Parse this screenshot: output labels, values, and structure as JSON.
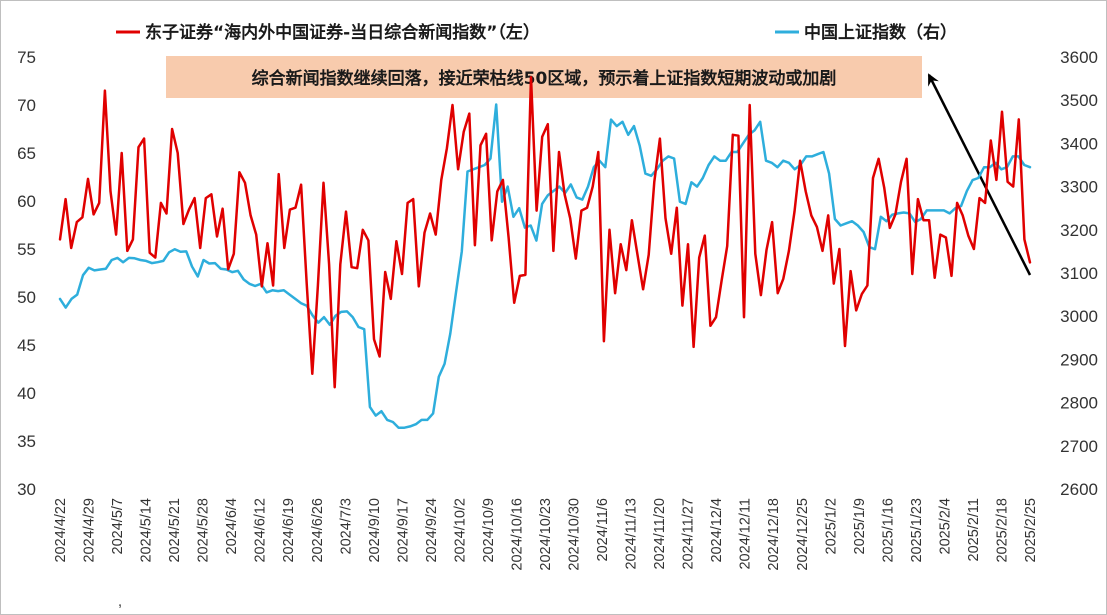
{
  "chart_data": {
    "type": "line",
    "x_tick_labels": [
      "2024/4/22",
      "2024/4/29",
      "2024/5/7",
      "2024/5/14",
      "2024/5/21",
      "2024/5/28",
      "2024/6/4",
      "2024/6/12",
      "2024/6/19",
      "2024/6/26",
      "2024/7/3",
      "2024/9/10",
      "2024/9/17",
      "2024/9/24",
      "2024/10/2",
      "2024/10/9",
      "2024/10/16",
      "2024/10/23",
      "2024/10/30",
      "2024/11/6",
      "2024/11/13",
      "2024/11/20",
      "2024/11/27",
      "2024/12/4",
      "2024/12/11",
      "2024/12/18",
      "2024/12/25",
      "2025/1/2",
      "2025/1/9",
      "2025/1/16",
      "2025/1/23",
      "2025/2/4",
      "2025/2/11",
      "2025/2/18",
      "2025/2/25"
    ],
    "stray_mark": ",",
    "y_left": {
      "min": 30,
      "max": 75,
      "ticks": [
        "30",
        "35",
        "40",
        "45",
        "50",
        "55",
        "60",
        "65",
        "70",
        "75"
      ]
    },
    "y_right": {
      "min": 2600,
      "max": 3600,
      "ticks": [
        "2600",
        "2700",
        "2800",
        "2900",
        "3000",
        "3100",
        "3200",
        "3300",
        "3400",
        "3500",
        "3600"
      ]
    },
    "series": [
      {
        "name": "东子证券“海内外中国证券-当日综合新闻指数”（左）",
        "axis": "left",
        "color": "#e00000",
        "values": [
          56.0,
          60.2,
          55.1,
          57.8,
          58.3,
          62.3,
          58.6,
          59.8,
          71.5,
          61.0,
          56.5,
          65.0,
          54.8,
          56.0,
          65.6,
          66.5,
          54.6,
          54.1,
          59.8,
          58.7,
          67.5,
          65.0,
          57.6,
          59.1,
          60.3,
          55.1,
          60.3,
          60.7,
          56.3,
          59.2,
          52.9,
          54.5,
          63.0,
          61.9,
          58.5,
          56.5,
          51.1,
          55.6,
          51.2,
          62.8,
          55.1,
          59.1,
          59.3,
          61.7,
          51.4,
          42.0,
          51.2,
          61.9,
          53.4,
          40.6,
          53.4,
          58.9,
          53.1,
          53.0,
          57.0,
          55.9,
          45.6,
          43.8,
          52.6,
          49.8,
          55.8,
          52.4,
          59.8,
          60.2,
          51.1,
          56.7,
          58.7,
          56.5,
          62.2,
          65.5,
          70.0,
          63.3,
          67.2,
          69.1,
          55.4,
          65.8,
          67.0,
          55.9,
          61.0,
          62.2,
          56.2,
          49.4,
          52.2,
          52.3,
          72.9,
          59.0,
          66.7,
          68.0,
          54.8,
          65.1,
          60.7,
          58.2,
          54.0,
          59.0,
          59.3,
          61.5,
          65.1,
          45.4,
          57.0,
          50.4,
          55.5,
          52.8,
          58.0,
          54.4,
          50.8,
          54.4,
          62.0,
          66.5,
          58.2,
          54.5,
          59.3,
          49.1,
          55.5,
          44.8,
          54.1,
          56.4,
          47.0,
          47.9,
          51.7,
          55.3,
          66.9,
          66.8,
          47.9,
          70.0,
          54.5,
          50.2,
          54.9,
          57.8,
          50.4,
          51.9,
          54.8,
          58.9,
          64.2,
          61.0,
          58.5,
          57.3,
          54.8,
          58.5,
          51.4,
          55.0,
          44.9,
          52.7,
          48.6,
          50.3,
          51.2,
          62.4,
          64.4,
          61.4,
          57.2,
          58.6,
          62.0,
          64.4,
          52.4,
          60.2,
          58.0,
          58.0,
          52.0,
          56.5,
          56.2,
          52.2,
          59.8,
          58.5,
          56.4,
          55.0,
          60.3,
          59.8,
          66.3,
          62.2,
          69.3,
          62.0,
          61.5,
          68.5,
          56.0,
          53.6
        ]
      },
      {
        "name": "中国上证指数（右）",
        "axis": "right",
        "color": "#2eaedc",
        "values": [
          3040,
          3020,
          3040,
          3050,
          3095,
          3112,
          3106,
          3108,
          3110,
          3130,
          3135,
          3125,
          3135,
          3134,
          3130,
          3128,
          3123,
          3125,
          3128,
          3148,
          3155,
          3149,
          3150,
          3115,
          3092,
          3130,
          3122,
          3123,
          3110,
          3108,
          3102,
          3105,
          3085,
          3075,
          3070,
          3075,
          3055,
          3060,
          3058,
          3060,
          3050,
          3040,
          3030,
          3024,
          3002,
          2985,
          2998,
          2980,
          3001,
          3010,
          3011,
          2998,
          2975,
          2970,
          2790,
          2770,
          2780,
          2760,
          2755,
          2742,
          2742,
          2745,
          2750,
          2760,
          2760,
          2775,
          2860,
          2890,
          2960,
          3055,
          3150,
          3335,
          3340,
          3345,
          3350,
          3365,
          3490,
          3265,
          3300,
          3230,
          3250,
          3205,
          3210,
          3175,
          3260,
          3280,
          3290,
          3300,
          3285,
          3305,
          3275,
          3270,
          3300,
          3345,
          3360,
          3345,
          3455,
          3440,
          3450,
          3420,
          3440,
          3395,
          3330,
          3325,
          3340,
          3360,
          3370,
          3365,
          3265,
          3260,
          3310,
          3300,
          3320,
          3350,
          3370,
          3360,
          3360,
          3380,
          3380,
          3400,
          3420,
          3430,
          3450,
          3360,
          3355,
          3345,
          3360,
          3355,
          3340,
          3350,
          3370,
          3370,
          3375,
          3380,
          3330,
          3225,
          3210,
          3215,
          3220,
          3210,
          3195,
          3160,
          3155,
          3230,
          3220,
          3235,
          3238,
          3240,
          3238,
          3218,
          3225,
          3245,
          3245,
          3245,
          3245,
          3238,
          3250,
          3255,
          3290,
          3315,
          3320,
          3345,
          3345,
          3355,
          3340,
          3345,
          3370,
          3370,
          3350,
          3345
        ]
      }
    ],
    "annotation": {
      "text": "综合新闻指数继续回落，接近荣枯线50区域，预示着上证指数短期波动或加剧"
    },
    "legend_position": "top",
    "grid": false
  }
}
